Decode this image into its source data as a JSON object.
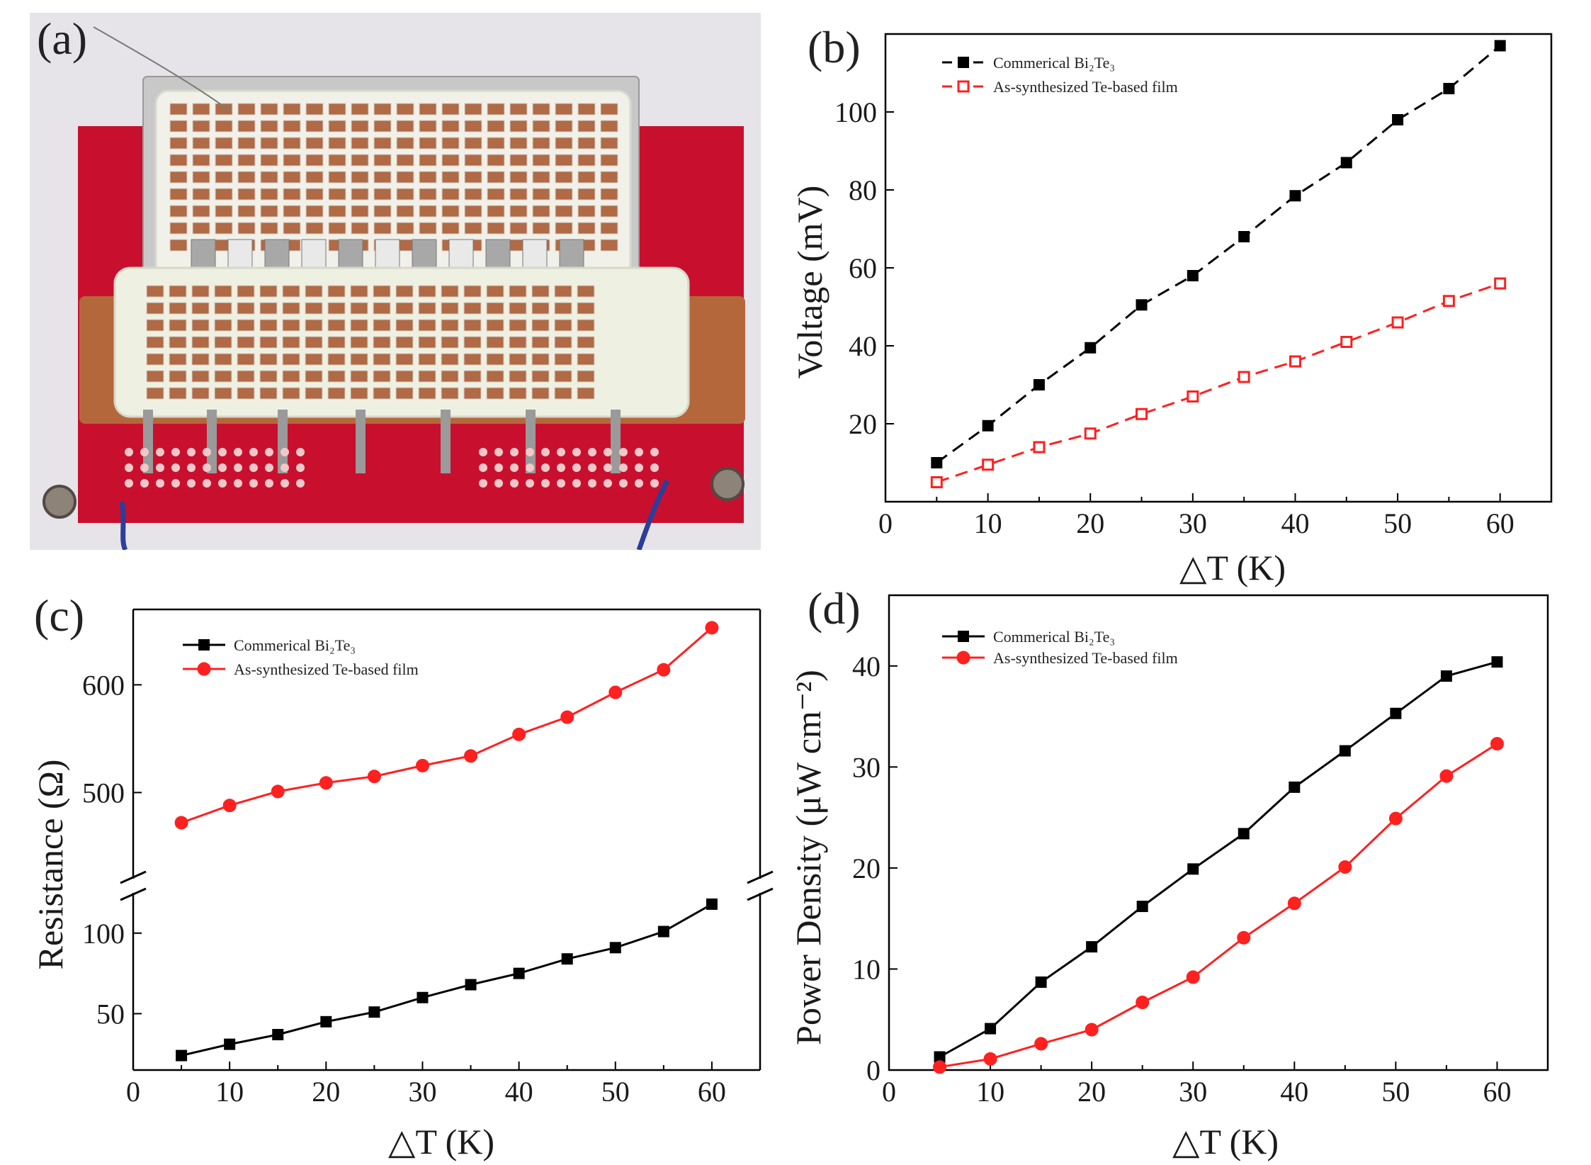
{
  "photo": {
    "label": "(a)",
    "description_icon": "thermoelectric-device-photo"
  },
  "colors": {
    "black_series": "#000000",
    "red_series": "#ff2020",
    "board_red": "#c8102e",
    "copper": "#b5673c",
    "wall": "#e6e4e9"
  },
  "chart_data": [
    {
      "panel": "(b)",
      "type": "line",
      "title": "",
      "xlabel": "△T (K)",
      "ylabel": "Voltage (mV)",
      "xlim": [
        0,
        65
      ],
      "ylim": [
        0,
        120
      ],
      "xticks": [
        0,
        10,
        20,
        30,
        40,
        50,
        60
      ],
      "yticks": [
        20,
        40,
        60,
        80,
        100
      ],
      "legend_position": "top-left",
      "series": [
        {
          "name": "Commerical Bi₂Te₃",
          "style": "dashed",
          "marker": "square-filled",
          "color": "#000000",
          "x": [
            5,
            10,
            15,
            20,
            25,
            30,
            35,
            40,
            45,
            50,
            55,
            60
          ],
          "values": [
            10,
            19.5,
            30,
            39.5,
            50.5,
            58,
            68,
            78.5,
            87,
            98,
            106,
            117
          ]
        },
        {
          "name": "As-synthesized Te-based film",
          "style": "dashed",
          "marker": "square-open",
          "color": "#ff2020",
          "x": [
            5,
            10,
            15,
            20,
            25,
            30,
            35,
            40,
            45,
            50,
            55,
            60
          ],
          "values": [
            5,
            9.5,
            14,
            17.5,
            22.5,
            27,
            32,
            36,
            41,
            46,
            51.5,
            56
          ]
        }
      ]
    },
    {
      "panel": "(c)",
      "type": "line",
      "title": "",
      "xlabel": "△T (K)",
      "ylabel": "Resistance (Ω)",
      "xlim": [
        0,
        65
      ],
      "broken_axis": true,
      "lower_ylim": [
        15,
        125
      ],
      "upper_ylim": [
        420,
        670
      ],
      "xticks": [
        0,
        10,
        20,
        30,
        40,
        50,
        60
      ],
      "yticks_lower": [
        50,
        100
      ],
      "yticks_upper": [
        500,
        600
      ],
      "legend_position": "top-left",
      "series": [
        {
          "name": "Commerical Bi₂Te₃",
          "style": "solid",
          "marker": "square-filled",
          "color": "#000000",
          "x": [
            5,
            10,
            15,
            20,
            25,
            30,
            35,
            40,
            45,
            50,
            55,
            60
          ],
          "values": [
            24,
            31,
            37,
            45,
            51,
            60,
            68,
            75,
            84,
            91,
            101,
            118
          ]
        },
        {
          "name": "As-synthesized Te-based film",
          "style": "solid",
          "marker": "circle-filled",
          "color": "#ff2020",
          "x": [
            5,
            10,
            15,
            20,
            25,
            30,
            35,
            40,
            45,
            50,
            55,
            60
          ],
          "values": [
            472,
            488,
            501,
            509,
            515,
            525,
            534,
            554,
            570,
            593,
            614,
            653
          ]
        }
      ]
    },
    {
      "panel": "(d)",
      "type": "line",
      "title": "",
      "xlabel": "△T (K)",
      "ylabel": "Power Density (μW cm⁻²)",
      "xlim": [
        0,
        65
      ],
      "ylim": [
        0,
        47
      ],
      "xticks": [
        0,
        10,
        20,
        30,
        40,
        50,
        60
      ],
      "yticks": [
        0,
        10,
        20,
        30,
        40
      ],
      "legend_position": "top-left",
      "series": [
        {
          "name": "Commerical Bi₂Te₃",
          "style": "solid",
          "marker": "square-filled",
          "color": "#000000",
          "x": [
            5,
            10,
            15,
            20,
            25,
            30,
            35,
            40,
            45,
            50,
            55,
            60
          ],
          "values": [
            1.3,
            4.1,
            8.7,
            12.2,
            16.2,
            19.9,
            23.4,
            28,
            31.6,
            35.3,
            39,
            40.4
          ]
        },
        {
          "name": "As-synthesized Te-based film",
          "style": "solid",
          "marker": "circle-filled",
          "color": "#ff2020",
          "x": [
            5,
            10,
            15,
            20,
            25,
            30,
            35,
            40,
            45,
            50,
            55,
            60
          ],
          "values": [
            0.3,
            1.1,
            2.6,
            4.0,
            6.7,
            9.2,
            13.1,
            16.5,
            20.1,
            24.9,
            29.1,
            32.3
          ]
        }
      ]
    }
  ]
}
